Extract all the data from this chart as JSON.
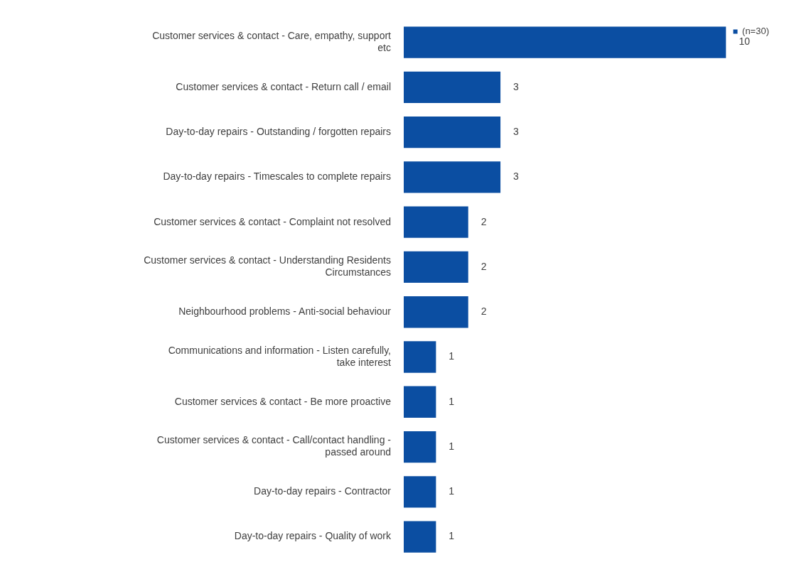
{
  "chart_data": {
    "type": "bar",
    "orientation": "horizontal",
    "categories": [
      "Customer services & contact - Care, empathy, support etc",
      "Customer services & contact - Return call / email",
      "Day-to-day repairs - Outstanding / forgotten repairs",
      "Day-to-day repairs - Timescales to complete repairs",
      "Customer services & contact - Complaint not resolved",
      "Customer services & contact - Understanding Residents Circumstances",
      "Neighbourhood problems - Anti-social behaviour",
      "Communications and information - Listen carefully, take interest",
      "Customer services & contact - Be more proactive",
      "Customer services & contact - Call/contact handling - passed around",
      "Day-to-day repairs - Contractor",
      "Day-to-day repairs - Quality of work"
    ],
    "series": [
      {
        "name": "(n=30)",
        "color": "#0b4ea2",
        "values": [
          10,
          3,
          3,
          3,
          2,
          2,
          2,
          1,
          1,
          1,
          1,
          1
        ]
      }
    ],
    "data_labels": true,
    "legend": "top right"
  }
}
